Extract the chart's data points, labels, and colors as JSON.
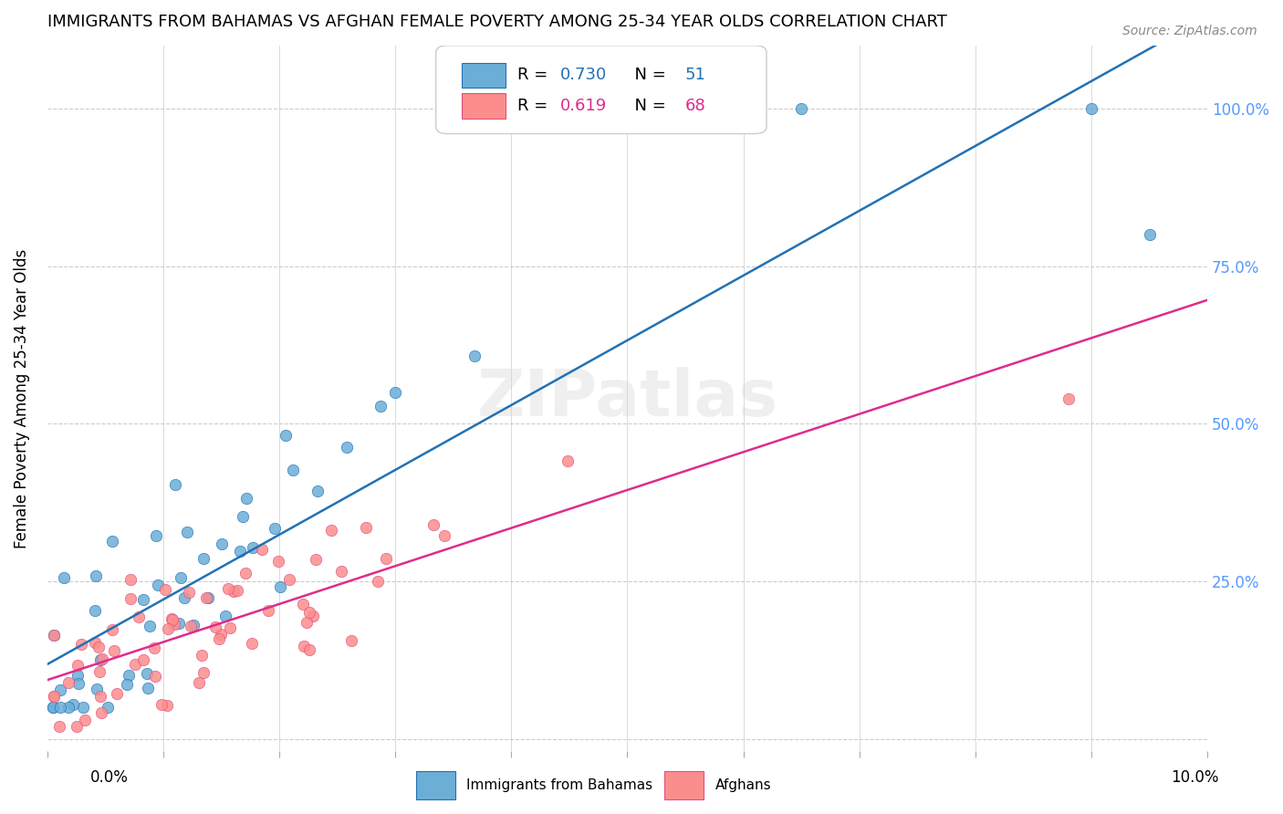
{
  "title": "IMMIGRANTS FROM BAHAMAS VS AFGHAN FEMALE POVERTY AMONG 25-34 YEAR OLDS CORRELATION CHART",
  "source": "Source: ZipAtlas.com",
  "ylabel": "Female Poverty Among 25-34 Year Olds",
  "blue_R": 0.73,
  "blue_N": 51,
  "pink_R": 0.619,
  "pink_N": 68,
  "blue_color": "#6baed6",
  "pink_color": "#fc8d8d",
  "blue_line_color": "#2171b5",
  "pink_line_color": "#de2d8b",
  "pink_edge_color": "#e05080",
  "watermark": "ZIPatlas",
  "xlim": [
    0,
    0.1
  ],
  "ylim": [
    -0.02,
    1.1
  ]
}
